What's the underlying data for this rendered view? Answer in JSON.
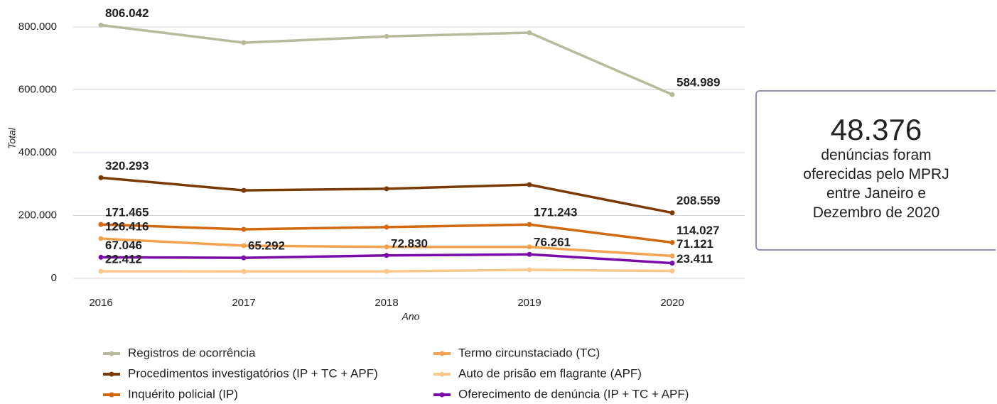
{
  "chart_data": {
    "type": "line",
    "xlabel": "Ano",
    "ylabel": "Total",
    "categories": [
      "2016",
      "2017",
      "2018",
      "2019",
      "2020"
    ],
    "ylim": [
      0,
      800000
    ],
    "yticks": [
      0,
      {
        "value": 200000,
        "label": "200.000"
      },
      {
        "value": 400000,
        "label": "400.000"
      },
      {
        "value": 600000,
        "label": "600.000"
      },
      {
        "value": 800000,
        "label": "800.000"
      }
    ],
    "grid": true,
    "series": [
      {
        "name": "Registros de ocorrência",
        "color": "#b9b99b",
        "label_color": "#5b5b3e",
        "values": [
          806042,
          750000,
          770000,
          782000,
          584989
        ],
        "value_labels": [
          "806.042",
          null,
          null,
          null,
          "584.989"
        ]
      },
      {
        "name": "Procedimentos investigatórios (IP + TC + APF)",
        "color": "#7a3b02",
        "label_color": "#8a4a08",
        "values": [
          320293,
          280000,
          285000,
          298000,
          208559
        ],
        "value_labels": [
          "320.293",
          null,
          null,
          null,
          "208.559"
        ]
      },
      {
        "name": "Inquérito policial (IP)",
        "color": "#d2690f",
        "label_color": "#d0700f",
        "values": [
          171465,
          156000,
          163000,
          171243,
          114027
        ],
        "value_labels": [
          "171.465",
          null,
          null,
          "171.243",
          "114.027"
        ]
      },
      {
        "name": "Termo circunstaciado (TC)",
        "color": "#f4a24e",
        "label_color": "#f2a048",
        "values": [
          126416,
          104000,
          100000,
          100000,
          71121
        ],
        "value_labels": [
          "126.416",
          null,
          null,
          null,
          "71.121"
        ]
      },
      {
        "name": "Auto de prisão em flagrante (APF)",
        "color": "#fbc68c",
        "label_color": "#f6b66e",
        "values": [
          22412,
          22000,
          22000,
          27000,
          23411
        ],
        "value_labels": [
          "22.412",
          null,
          null,
          null,
          "23.411"
        ]
      },
      {
        "name": "Oferecimento de denúncia (IP + TC + APF)",
        "color": "#7b0aa8",
        "label_color": "#7b0aa8",
        "values": [
          67046,
          65292,
          72830,
          76261,
          48376
        ],
        "value_labels": [
          "67.046",
          "65.292",
          "72.830",
          "76.261",
          null
        ]
      }
    ]
  },
  "card": {
    "value": "48.376",
    "text": "denúncias foram oferecidas pelo MPRJ entre Janeiro e Dezembro de 2020"
  }
}
